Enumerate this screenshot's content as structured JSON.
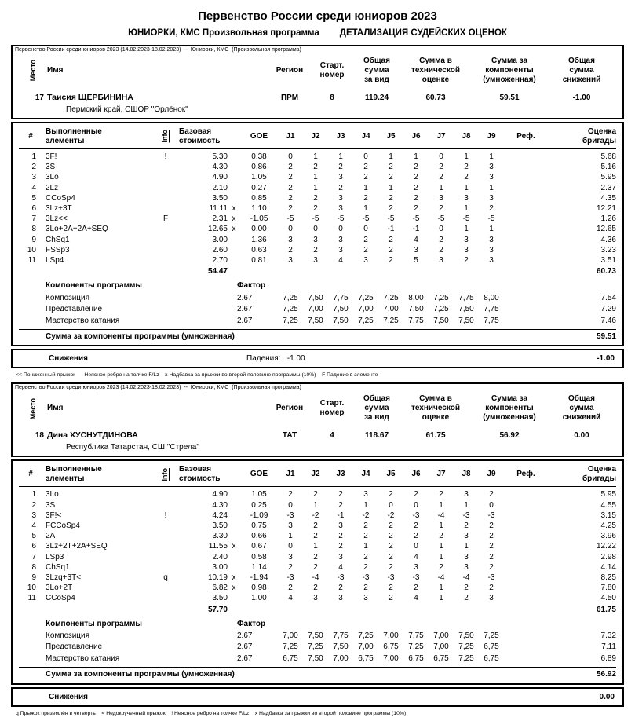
{
  "page": {
    "title": "Первенство России среди юниоров 2023",
    "subtitle_left": "ЮНИОРКИ, КМС Произвольная программа",
    "subtitle_right": "ДЕТАЛИЗАЦИЯ СУДЕЙСКИХ ОЦЕНОК"
  },
  "labels": {
    "event_line": "Первенство России среди юниоров 2023 (14.02.2023-18.02.2023)  --  Юниорки, КМС  (Произвольная программа)",
    "place": "Место",
    "name": "Имя",
    "region": "Регион",
    "start": "Старт.\nномер",
    "total": "Общая\nсумма\nза вид",
    "tech": "Сумма в\nтехнической\nоценке",
    "comp": "Сумма за\nкомпоненты\n(умноженная)",
    "ded": "Общая\nсумма\nснижений",
    "num": "#",
    "elements": "Выполненные\nэлементы",
    "info": "Info",
    "base": "Базовая\nстоимость",
    "goe": "GOE",
    "judges": [
      "J1",
      "J2",
      "J3",
      "J4",
      "J5",
      "J6",
      "J7",
      "J8",
      "J9"
    ],
    "ref": "Реф.",
    "panel_score": "Оценка\nбригады",
    "components_header": "Компоненты программы",
    "factor": "Фактор",
    "components_sum_label": "Сумма за компоненты программы (умноженная)",
    "deductions_label": "Снижения"
  },
  "skaters": [
    {
      "place": "17",
      "name": "Таисия ЩЕРБИНИНА",
      "club": "Пермский край, СШОР \"Орлёнок\"",
      "region": "ПРМ",
      "start": "8",
      "total": "119.24",
      "tech": "60.73",
      "comp": "59.51",
      "ded": "-1.00",
      "elements": [
        {
          "num": "1",
          "name": "3F!",
          "info": "!",
          "base": "5.30",
          "x": "",
          "goe": "0.38",
          "j": [
            "0",
            "1",
            "1",
            "0",
            "1",
            "1",
            "0",
            "1",
            "1"
          ],
          "score": "5.68"
        },
        {
          "num": "2",
          "name": "3S",
          "info": "",
          "base": "4.30",
          "x": "",
          "goe": "0.86",
          "j": [
            "2",
            "2",
            "2",
            "2",
            "2",
            "2",
            "2",
            "2",
            "3"
          ],
          "score": "5.16"
        },
        {
          "num": "3",
          "name": "3Lo",
          "info": "",
          "base": "4.90",
          "x": "",
          "goe": "1.05",
          "j": [
            "2",
            "1",
            "3",
            "2",
            "2",
            "2",
            "2",
            "2",
            "3"
          ],
          "score": "5.95"
        },
        {
          "num": "4",
          "name": "2Lz",
          "info": "",
          "base": "2.10",
          "x": "",
          "goe": "0.27",
          "j": [
            "2",
            "1",
            "2",
            "1",
            "1",
            "2",
            "1",
            "1",
            "1"
          ],
          "score": "2.37"
        },
        {
          "num": "5",
          "name": "CCoSp4",
          "info": "",
          "base": "3.50",
          "x": "",
          "goe": "0.85",
          "j": [
            "2",
            "2",
            "3",
            "2",
            "2",
            "2",
            "3",
            "3",
            "3"
          ],
          "score": "4.35"
        },
        {
          "num": "6",
          "name": "3Lz+3T",
          "info": "",
          "base": "11.11",
          "x": "x",
          "goe": "1.10",
          "j": [
            "2",
            "2",
            "3",
            "1",
            "2",
            "2",
            "2",
            "1",
            "2"
          ],
          "score": "12.21"
        },
        {
          "num": "7",
          "name": "3Lz<<",
          "info": "F",
          "base": "2.31",
          "x": "x",
          "goe": "-1.05",
          "j": [
            "-5",
            "-5",
            "-5",
            "-5",
            "-5",
            "-5",
            "-5",
            "-5",
            "-5"
          ],
          "score": "1.26"
        },
        {
          "num": "8",
          "name": "3Lo+2A+2A+SEQ",
          "info": "",
          "base": "12.65",
          "x": "x",
          "goe": "0.00",
          "j": [
            "0",
            "0",
            "0",
            "0",
            "-1",
            "-1",
            "0",
            "1",
            "1"
          ],
          "score": "12.65"
        },
        {
          "num": "9",
          "name": "ChSq1",
          "info": "",
          "base": "3.00",
          "x": "",
          "goe": "1.36",
          "j": [
            "3",
            "3",
            "3",
            "2",
            "2",
            "4",
            "2",
            "3",
            "3"
          ],
          "score": "4.36"
        },
        {
          "num": "10",
          "name": "FSSp3",
          "info": "",
          "base": "2.60",
          "x": "",
          "goe": "0.63",
          "j": [
            "2",
            "2",
            "3",
            "2",
            "2",
            "3",
            "2",
            "3",
            "3"
          ],
          "score": "3.23"
        },
        {
          "num": "11",
          "name": "LSp4",
          "info": "",
          "base": "2.70",
          "x": "",
          "goe": "0.81",
          "j": [
            "3",
            "3",
            "4",
            "3",
            "2",
            "5",
            "3",
            "2",
            "3"
          ],
          "score": "3.51"
        }
      ],
      "base_total": "54.47",
      "panel_total": "60.73",
      "components": [
        {
          "name": "Композиция",
          "factor": "2.67",
          "j": [
            "7,25",
            "7,50",
            "7,75",
            "7,25",
            "7,25",
            "8,00",
            "7,25",
            "7,75",
            "8,00"
          ],
          "score": "7.54"
        },
        {
          "name": "Представление",
          "factor": "2.67",
          "j": [
            "7,25",
            "7,00",
            "7,50",
            "7,00",
            "7,00",
            "7,50",
            "7,25",
            "7,50",
            "7,75"
          ],
          "score": "7.29"
        },
        {
          "name": "Мастерство катания",
          "factor": "2.67",
          "j": [
            "7,25",
            "7,50",
            "7,50",
            "7,25",
            "7,25",
            "7,75",
            "7,50",
            "7,50",
            "7,75"
          ],
          "score": "7.46"
        }
      ],
      "components_sum": "59.51",
      "deduction_detail": "Падения:   -1.00",
      "deduction_total": "-1.00",
      "footnote": "<< Пониженный прыжок    ! Неясное ребро на толчке F/Lz    x Надбавка за прыжки во второй половине программы (10%)    F Падение в элементе"
    },
    {
      "place": "18",
      "name": "Дина ХУСНУТДИНОВА",
      "club": "Республика Татарстан, СШ \"Стрела\"",
      "region": "ТАТ",
      "start": "4",
      "total": "118.67",
      "tech": "61.75",
      "comp": "56.92",
      "ded": "0.00",
      "elements": [
        {
          "num": "1",
          "name": "3Lo",
          "info": "",
          "base": "4.90",
          "x": "",
          "goe": "1.05",
          "j": [
            "2",
            "2",
            "2",
            "3",
            "2",
            "2",
            "2",
            "3",
            "2"
          ],
          "score": "5.95"
        },
        {
          "num": "2",
          "name": "3S",
          "info": "",
          "base": "4.30",
          "x": "",
          "goe": "0.25",
          "j": [
            "0",
            "1",
            "2",
            "1",
            "0",
            "0",
            "1",
            "1",
            "0"
          ],
          "score": "4.55"
        },
        {
          "num": "3",
          "name": "3F!<",
          "info": "!",
          "base": "4.24",
          "x": "",
          "goe": "-1.09",
          "j": [
            "-3",
            "-2",
            "-1",
            "-2",
            "-2",
            "-3",
            "-4",
            "-3",
            "-3"
          ],
          "score": "3.15"
        },
        {
          "num": "4",
          "name": "FCCoSp4",
          "info": "",
          "base": "3.50",
          "x": "",
          "goe": "0.75",
          "j": [
            "3",
            "2",
            "3",
            "2",
            "2",
            "2",
            "1",
            "2",
            "2"
          ],
          "score": "4.25"
        },
        {
          "num": "5",
          "name": "2A",
          "info": "",
          "base": "3.30",
          "x": "",
          "goe": "0.66",
          "j": [
            "1",
            "2",
            "2",
            "2",
            "2",
            "2",
            "2",
            "3",
            "2"
          ],
          "score": "3.96"
        },
        {
          "num": "6",
          "name": "3Lz+2T+2A+SEQ",
          "info": "",
          "base": "11.55",
          "x": "x",
          "goe": "0.67",
          "j": [
            "0",
            "1",
            "2",
            "1",
            "2",
            "0",
            "1",
            "1",
            "2"
          ],
          "score": "12.22"
        },
        {
          "num": "7",
          "name": "LSp3",
          "info": "",
          "base": "2.40",
          "x": "",
          "goe": "0.58",
          "j": [
            "3",
            "2",
            "3",
            "2",
            "2",
            "4",
            "1",
            "3",
            "2"
          ],
          "score": "2.98"
        },
        {
          "num": "8",
          "name": "ChSq1",
          "info": "",
          "base": "3.00",
          "x": "",
          "goe": "1.14",
          "j": [
            "2",
            "2",
            "4",
            "2",
            "2",
            "3",
            "2",
            "3",
            "2"
          ],
          "score": "4.14"
        },
        {
          "num": "9",
          "name": "3Lzq+3T<",
          "info": "q",
          "base": "10.19",
          "x": "x",
          "goe": "-1.94",
          "j": [
            "-3",
            "-4",
            "-3",
            "-3",
            "-3",
            "-3",
            "-4",
            "-4",
            "-3"
          ],
          "score": "8.25"
        },
        {
          "num": "10",
          "name": "3Lo+2T",
          "info": "",
          "base": "6.82",
          "x": "x",
          "goe": "0.98",
          "j": [
            "2",
            "2",
            "2",
            "2",
            "2",
            "2",
            "1",
            "2",
            "2"
          ],
          "score": "7.80"
        },
        {
          "num": "11",
          "name": "CCoSp4",
          "info": "",
          "base": "3.50",
          "x": "",
          "goe": "1.00",
          "j": [
            "4",
            "3",
            "3",
            "3",
            "2",
            "4",
            "1",
            "2",
            "3"
          ],
          "score": "4.50"
        }
      ],
      "base_total": "57.70",
      "panel_total": "61.75",
      "components": [
        {
          "name": "Композиция",
          "factor": "2.67",
          "j": [
            "7,00",
            "7,50",
            "7,75",
            "7,25",
            "7,00",
            "7,75",
            "7,00",
            "7,50",
            "7,25"
          ],
          "score": "7.32"
        },
        {
          "name": "Представление",
          "factor": "2.67",
          "j": [
            "7,25",
            "7,25",
            "7,50",
            "7,00",
            "6,75",
            "7,25",
            "7,00",
            "7,25",
            "6,75"
          ],
          "score": "7.11"
        },
        {
          "name": "Мастерство катания",
          "factor": "2.67",
          "j": [
            "6,75",
            "7,50",
            "7,00",
            "6,75",
            "7,00",
            "6,75",
            "6,75",
            "7,25",
            "6,75"
          ],
          "score": "6.89"
        }
      ],
      "components_sum": "56.92",
      "deduction_detail": "",
      "deduction_total": "0.00",
      "footnote": "q Прыжок приземлён в четверть    < Недокрученный прыжок    ! Неясное ребро на толчке F/Lz    x Надбавка за прыжки во второй половине программы (10%)"
    }
  ]
}
